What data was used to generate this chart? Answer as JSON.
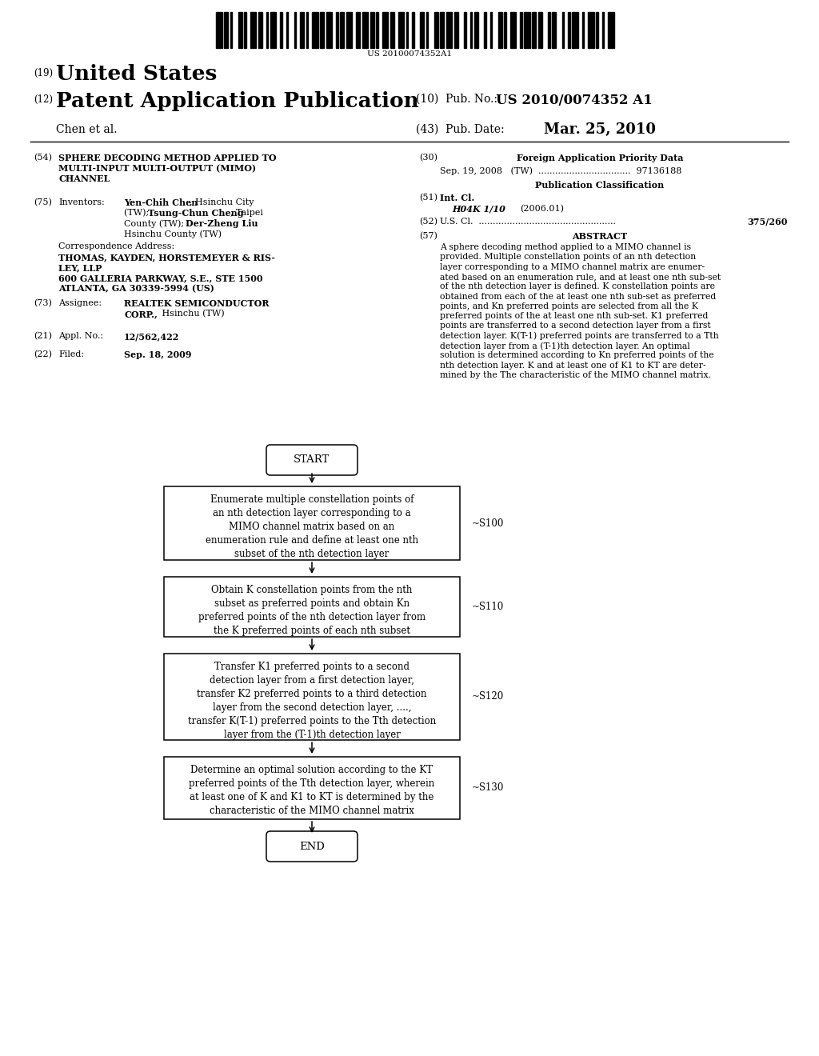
{
  "background_color": "#ffffff",
  "barcode_text": "US 20100074352A1",
  "patent_number": "US 2010/0074352 A1",
  "pub_date": "Mar. 25, 2010",
  "country": "United States",
  "doc_type": "Patent Application Publication",
  "inventors_label": "Chen et al.",
  "section54_lines": [
    "SPHERE DECODING METHOD APPLIED TO",
    "MULTI-INPUT MULTI-OUTPUT (MIMO)",
    "CHANNEL"
  ],
  "corr_address_lines": [
    "THOMAS, KAYDEN, HORSTEMEYER & RIS-",
    "LEY, LLP",
    "600 GALLERIA PARKWAY, S.E., STE 1500",
    "ATLANTA, GA 30339-5994 (US)"
  ],
  "section73_bold": "REALTEK SEMICONDUCTOR",
  "section73_bold2": "CORP.,",
  "section73_normal": " Hsinchu (TW)",
  "section21_content": "12/562,422",
  "section22_content": "Sep. 18, 2009",
  "section30_content": "Sep. 19, 2008   (TW)  .................................  97136188",
  "section51_content": "H04K 1/10",
  "section51_year": "(2006.01)",
  "section52_dots": "U.S. Cl.  .................................................",
  "section52_content": "375/260",
  "abstract_lines": [
    "A sphere decoding method applied to a MIMO channel is",
    "provided. Multiple constellation points of an nth detection",
    "layer corresponding to a MIMO channel matrix are enumer-",
    "ated based on an enumeration rule, and at least one nth sub-set",
    "of the nth detection layer is defined. K constellation points are",
    "obtained from each of the at least one nth sub-set as preferred",
    "points, and Kn preferred points are selected from all the K",
    "preferred points of the at least one nth sub-set. K1 preferred",
    "points are transferred to a second detection layer from a first",
    "detection layer. K(T-1) preferred points are transferred to a Tth",
    "detection layer from a (T-1)th detection layer. An optimal",
    "solution is determined according to Kn preferred points of the",
    "nth detection layer. K and at least one of K1 to KT are deter-",
    "mined by the The characteristic of the MIMO channel matrix."
  ],
  "flow_label1": "~S100",
  "flow_label2": "~S110",
  "flow_label3": "~S120",
  "flow_label4": "~S130",
  "box1_lines": [
    "Enumerate multiple constellation points of",
    "an nth detection layer corresponding to a",
    "MIMO channel matrix based on an",
    "enumeration rule and define at least one nth",
    "subset of the nth detection layer"
  ],
  "box2_lines": [
    "Obtain K constellation points from the nth",
    "subset as preferred points and obtain Kn",
    "preferred points of the nth detection layer from",
    "the K preferred points of each nth subset"
  ],
  "box3_lines": [
    "Transfer K1 preferred points to a second",
    "detection layer from a first detection layer,",
    "transfer K2 preferred points to a third detection",
    "layer from the second detection layer, ....,",
    "transfer K(T-1) preferred points to the Tth detection",
    "layer from the (T-1)th detection layer"
  ],
  "box4_lines": [
    "Determine an optimal solution according to the KT",
    "preferred points of the Tth detection layer, wherein",
    "at least one of K and K1 to KT is determined by the",
    "characteristic of the MIMO channel matrix"
  ]
}
